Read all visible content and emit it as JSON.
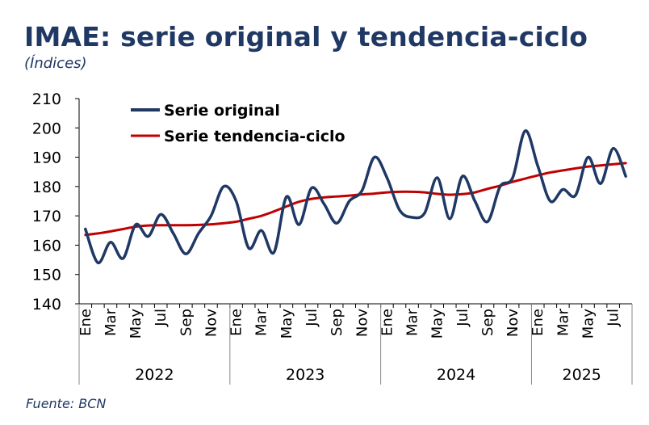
{
  "title": "IMAE: serie original y tendencia-ciclo",
  "subtitle": "(Índices)",
  "source": "Fuente: BCN",
  "chart_data": {
    "type": "line",
    "title": "IMAE: serie original y tendencia-ciclo",
    "ylim": [
      140,
      210
    ],
    "yticks": [
      140,
      150,
      160,
      170,
      180,
      190,
      200,
      210
    ],
    "legend_position": "top-left",
    "x": [
      "2022-01",
      "2022-02",
      "2022-03",
      "2022-04",
      "2022-05",
      "2022-06",
      "2022-07",
      "2022-08",
      "2022-09",
      "2022-10",
      "2022-11",
      "2022-12",
      "2023-01",
      "2023-02",
      "2023-03",
      "2023-04",
      "2023-05",
      "2023-06",
      "2023-07",
      "2023-08",
      "2023-09",
      "2023-10",
      "2023-11",
      "2023-12",
      "2024-01",
      "2024-02",
      "2024-03",
      "2024-04",
      "2024-05",
      "2024-06",
      "2024-07",
      "2024-08",
      "2024-09",
      "2024-10",
      "2024-11",
      "2024-12",
      "2025-01",
      "2025-02",
      "2025-03",
      "2025-04",
      "2025-05",
      "2025-06",
      "2025-07",
      "2025-08"
    ],
    "month_labels": [
      "Ene",
      "Mar",
      "May",
      "Jul",
      "Sep",
      "Nov",
      "Ene",
      "Mar",
      "May",
      "Jul",
      "Sep",
      "Nov",
      "Ene",
      "Mar",
      "May",
      "Jul",
      "Sep",
      "Nov",
      "Ene",
      "Mar",
      "May",
      "Jul"
    ],
    "years": [
      "2022",
      "2023",
      "2024",
      "2025"
    ],
    "series": [
      {
        "name": "Serie original",
        "color": "#1F3864",
        "values": [
          165.5,
          154,
          161,
          155.5,
          167,
          163,
          170.5,
          164,
          157,
          164,
          170,
          180,
          175,
          159,
          165,
          157.5,
          176.5,
          167,
          179.5,
          174,
          167.5,
          175,
          178.5,
          190,
          183,
          172,
          169.5,
          171,
          183,
          169,
          183.5,
          175,
          168,
          180,
          183,
          199,
          187,
          175,
          179,
          177,
          190,
          181,
          193,
          183.5
        ]
      },
      {
        "name": "Serie tendencia-ciclo",
        "color": "#C00000",
        "values": [
          163.5,
          164,
          164.7,
          165.5,
          166.3,
          166.7,
          166.8,
          166.8,
          166.8,
          166.9,
          167.1,
          167.5,
          168,
          169,
          170,
          171.5,
          173.2,
          174.8,
          175.8,
          176.3,
          176.6,
          176.9,
          177.3,
          177.6,
          178,
          178.2,
          178.2,
          178,
          177.5,
          177.2,
          177.4,
          178,
          179.2,
          180.3,
          181.6,
          182.7,
          183.8,
          184.8,
          185.5,
          186.2,
          186.8,
          187.2,
          187.6,
          188
        ]
      }
    ]
  }
}
